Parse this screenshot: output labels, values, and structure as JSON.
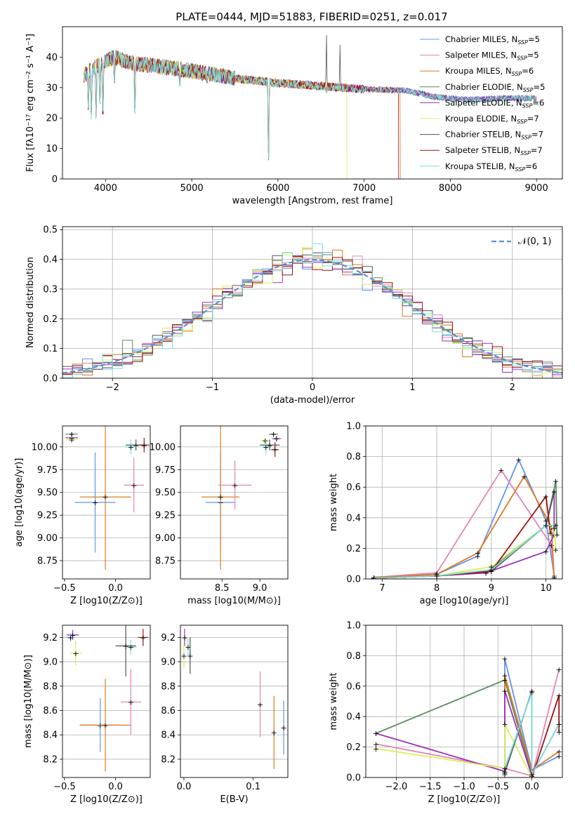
{
  "title": "PLATE=0444, MJD=51883, FIBERID=0251, z=0.017",
  "colors": [
    "#6495ED",
    "#E585B8",
    "#E07B22",
    "#5D8A5E",
    "#9B30B8",
    "#D8F05A",
    "#555555",
    "#A01010",
    "#7DDDDD"
  ],
  "chart_data": [
    {
      "id": "spectrum",
      "type": "line",
      "xlabel": "wavelength [Angstrom, rest frame]",
      "ylabel": "Flux [fλ10⁻¹⁷ erg cm⁻² s⁻¹ A⁻¹]",
      "xlim": [
        3500,
        9300
      ],
      "ylim": [
        0,
        50
      ],
      "xticks": [
        4000,
        5000,
        6000,
        7000,
        8000,
        9000
      ],
      "yticks": [
        0,
        10,
        20,
        30,
        40
      ],
      "legend_position": "top-right",
      "legend": [
        "Chabrier MILES, N_SSP=5",
        "Salpeter MILES, N_SSP=5",
        "Kroupa MILES, N_SSP=6",
        "Chabrier ELODIE, N_SSP=5",
        "Salpeter ELODIE, N_SSP=6",
        "Kroupa ELODIE, N_SSP=7",
        "Chabrier STELIB, N_SSP=7",
        "Salpeter STELIB, N_SSP=7",
        "Kroupa STELIB, N_SSP=6"
      ],
      "continuum": [
        [
          3750,
          34
        ],
        [
          3950,
          38
        ],
        [
          4100,
          40
        ],
        [
          4300,
          38
        ],
        [
          4600,
          37
        ],
        [
          5000,
          35.5
        ],
        [
          5500,
          33
        ],
        [
          6000,
          31.5
        ],
        [
          6500,
          30.5
        ],
        [
          7000,
          29.5
        ],
        [
          7500,
          29
        ],
        [
          7800,
          27
        ],
        [
          8200,
          26
        ],
        [
          8600,
          26.5
        ],
        [
          9000,
          26.5
        ]
      ],
      "series_ranges": [
        [
          3750,
          9000
        ],
        [
          3750,
          9000
        ],
        [
          3750,
          7420
        ],
        [
          3750,
          9000
        ],
        [
          3750,
          8900
        ],
        [
          3750,
          6800
        ],
        [
          3750,
          9000
        ],
        [
          3750,
          7400
        ],
        [
          3750,
          8950
        ]
      ],
      "absorption_lines": [
        [
          3800,
          20
        ],
        [
          3835,
          18
        ],
        [
          3890,
          16
        ],
        [
          3934,
          22
        ],
        [
          3969,
          15
        ],
        [
          4102,
          30
        ],
        [
          4340,
          18
        ],
        [
          4861,
          30
        ],
        [
          5175,
          31
        ],
        [
          5890,
          0
        ],
        [
          6563,
          28
        ]
      ],
      "emission_lines": [
        [
          6563,
          50
        ],
        [
          6720,
          44
        ]
      ]
    },
    {
      "id": "residual_histogram",
      "type": "histogram",
      "xlabel": "(data-model)/error",
      "ylabel": "Normed distribution",
      "xlim": [
        -2.5,
        2.5
      ],
      "ylim": [
        0,
        0.51
      ],
      "xticks": [
        -2,
        -1,
        0,
        1,
        2
      ],
      "yticks": [
        0.0,
        0.1,
        0.2,
        0.3,
        0.4,
        0.5
      ],
      "legend_position": "top-right",
      "reference_curve": "N(0,1)",
      "reference_label": "𝒩(0, 1)",
      "bin_width": 0.1,
      "grid": true
    },
    {
      "id": "age_vs_metallicity",
      "type": "errorbar",
      "xlabel": "Z [log10(Z/Z⊙)]",
      "ylabel": "age  [log10(age/yr)]",
      "xlim": [
        -0.52,
        0.34
      ],
      "ylim": [
        8.55,
        10.23
      ],
      "xticks": [
        -0.5,
        0.0
      ],
      "yticks": [
        8.75,
        9.0,
        9.25,
        9.5,
        9.75,
        10.0
      ],
      "points": [
        {
          "c": 0,
          "x": -0.2,
          "y": 9.39,
          "xe": 0.2,
          "ye": 0.55
        },
        {
          "c": 2,
          "x": -0.1,
          "y": 9.45,
          "xe": 0.25,
          "ye": 0.8
        },
        {
          "c": 1,
          "x": 0.18,
          "y": 9.58,
          "xe": 0.1,
          "ye": 0.3
        },
        {
          "c": 4,
          "x": -0.43,
          "y": 10.1,
          "xe": 0.06,
          "ye": 0.03
        },
        {
          "c": 5,
          "x": -0.43,
          "y": 10.08,
          "xe": 0.06,
          "ye": 0.03
        },
        {
          "c": 3,
          "x": -0.43,
          "y": 10.14,
          "xe": 0.06,
          "ye": 0.02
        },
        {
          "c": 6,
          "x": 0.2,
          "y": 10.02,
          "xe": 0.1,
          "ye": 0.06
        },
        {
          "c": 7,
          "x": 0.28,
          "y": 10.02,
          "xe": 0.05,
          "ye": 0.08
        },
        {
          "c": 8,
          "x": 0.15,
          "y": 10.0,
          "xe": 0.06,
          "ye": 0.08
        }
      ]
    },
    {
      "id": "age_vs_mass",
      "type": "errorbar",
      "xlabel": "mass [log10(M/M⊙)]",
      "ylabel": "",
      "xlim": [
        7.95,
        9.37
      ],
      "ylim": [
        8.55,
        10.23
      ],
      "xticks": [
        8.5,
        9.0
      ],
      "yticks": [
        8.75,
        9.0,
        9.25,
        9.5,
        9.75,
        10.0
      ],
      "points": [
        {
          "c": 0,
          "x": 8.48,
          "y": 9.39,
          "xe": 0.2,
          "ye": 0.55
        },
        {
          "c": 2,
          "x": 8.48,
          "y": 9.45,
          "xe": 0.25,
          "ye": 0.8
        },
        {
          "c": 1,
          "x": 8.67,
          "y": 9.58,
          "xe": 0.22,
          "ye": 0.27
        },
        {
          "c": 4,
          "x": 9.22,
          "y": 10.09,
          "xe": 0.06,
          "ye": 0.03
        },
        {
          "c": 5,
          "x": 9.07,
          "y": 10.07,
          "xe": 0.06,
          "ye": 0.03
        },
        {
          "c": 3,
          "x": 9.18,
          "y": 10.14,
          "xe": 0.06,
          "ye": 0.02
        },
        {
          "c": 6,
          "x": 9.13,
          "y": 10.02,
          "xe": 0.13,
          "ye": 0.06
        },
        {
          "c": 7,
          "x": 9.2,
          "y": 9.97,
          "xe": 0.05,
          "ye": 0.08
        },
        {
          "c": 8,
          "x": 9.08,
          "y": 10.0,
          "xe": 0.05,
          "ye": 0.08
        }
      ]
    },
    {
      "id": "weight_vs_age",
      "type": "line",
      "xlabel": "age  [log10(age/yr)]",
      "ylabel": "mass weight",
      "xlim": [
        6.7,
        10.3
      ],
      "ylim": [
        0,
        1.0
      ],
      "xticks": [
        7,
        8,
        9,
        10
      ],
      "yticks": [
        0.0,
        0.2,
        0.4,
        0.6,
        0.8,
        1.0
      ],
      "grid": true,
      "series": [
        {
          "c": 0,
          "points": [
            [
              6.85,
              0.01
            ],
            [
              8.0,
              0.03
            ],
            [
              8.75,
              0.15
            ],
            [
              9.5,
              0.78
            ],
            [
              10.0,
              0.38
            ],
            [
              10.15,
              0.02
            ]
          ]
        },
        {
          "c": 1,
          "points": [
            [
              6.85,
              0.01
            ],
            [
              8.0,
              0.04
            ],
            [
              9.18,
              0.71
            ],
            [
              10.1,
              0.22
            ],
            [
              10.15,
              0.01
            ]
          ]
        },
        {
          "c": 2,
          "points": [
            [
              6.85,
              0.01
            ],
            [
              8.0,
              0.03
            ],
            [
              8.75,
              0.17
            ],
            [
              9.6,
              0.67
            ],
            [
              10.1,
              0.34
            ],
            [
              10.15,
              0.01
            ]
          ]
        },
        {
          "c": 3,
          "points": [
            [
              6.85,
              0.005
            ],
            [
              8.0,
              0.02
            ],
            [
              8.9,
              0.04
            ],
            [
              10.0,
              0.35
            ],
            [
              10.18,
              0.64
            ],
            [
              10.2,
              0.29
            ]
          ]
        },
        {
          "c": 4,
          "points": [
            [
              6.85,
              0.005
            ],
            [
              8.0,
              0.02
            ],
            [
              8.9,
              0.04
            ],
            [
              10.0,
              0.18
            ],
            [
              10.15,
              0.29
            ],
            [
              10.15,
              0.57
            ]
          ]
        },
        {
          "c": 5,
          "points": [
            [
              6.85,
              0.005
            ],
            [
              8.0,
              0.02
            ],
            [
              9.0,
              0.08
            ],
            [
              10.0,
              0.35
            ],
            [
              10.15,
              0.33
            ],
            [
              10.18,
              0.19
            ]
          ]
        },
        {
          "c": 6,
          "points": [
            [
              6.85,
              0.005
            ],
            [
              8.0,
              0.02
            ],
            [
              9.0,
              0.05
            ],
            [
              10.0,
              0.35
            ],
            [
              10.15,
              0.57
            ]
          ]
        },
        {
          "c": 7,
          "points": [
            [
              6.85,
              0.005
            ],
            [
              8.0,
              0.02
            ],
            [
              9.0,
              0.05
            ],
            [
              10.0,
              0.54
            ],
            [
              10.08,
              0.3
            ]
          ]
        },
        {
          "c": 8,
          "points": [
            [
              6.85,
              0.005
            ],
            [
              8.0,
              0.02
            ],
            [
              9.0,
              0.06
            ],
            [
              10.0,
              0.35
            ],
            [
              10.18,
              0.35
            ]
          ]
        }
      ]
    },
    {
      "id": "mass_vs_metallicity",
      "type": "errorbar",
      "xlabel": "Z [log10(Z/Z⊙)]",
      "ylabel": "mass [log10(M/M⊙)]",
      "xlim": [
        -0.52,
        0.34
      ],
      "ylim": [
        8.05,
        9.3
      ],
      "xticks": [
        -0.5,
        0.0
      ],
      "yticks": [
        8.2,
        8.4,
        8.6,
        8.8,
        9.0,
        9.2
      ],
      "points": [
        {
          "c": 0,
          "x": -0.15,
          "y": 8.48,
          "xe": 0.2,
          "ye": 0.22
        },
        {
          "c": 2,
          "x": -0.1,
          "y": 8.48,
          "xe": 0.25,
          "ye": 0.38
        },
        {
          "c": 1,
          "x": 0.15,
          "y": 8.67,
          "xe": 0.1,
          "ye": 0.27
        },
        {
          "c": 4,
          "x": -0.42,
          "y": 9.22,
          "xe": 0.06,
          "ye": 0.04
        },
        {
          "c": 0,
          "x": -0.44,
          "y": 9.2,
          "xe": 0.04,
          "ye": 0.03
        },
        {
          "c": 5,
          "x": -0.39,
          "y": 9.07,
          "xe": 0.06,
          "ye": 0.1
        },
        {
          "c": 6,
          "x": 0.1,
          "y": 9.13,
          "xe": 0.1,
          "ye": 0.25
        },
        {
          "c": 7,
          "x": 0.27,
          "y": 9.2,
          "xe": 0.05,
          "ye": 0.07
        },
        {
          "c": 8,
          "x": 0.15,
          "y": 9.12,
          "xe": 0.05,
          "ye": 0.06
        }
      ]
    },
    {
      "id": "mass_vs_ebv",
      "type": "errorbar",
      "xlabel": "E(B-V)",
      "ylabel": "",
      "xlim": [
        -0.005,
        0.15
      ],
      "ylim": [
        8.05,
        9.3
      ],
      "xticks": [
        0.0,
        0.1
      ],
      "yticks": [
        8.2,
        8.4,
        8.6,
        8.8,
        9.0,
        9.2
      ],
      "points": [
        {
          "c": 4,
          "x": 0.001,
          "y": 9.2,
          "xe": 0.0,
          "ye": 0.07
        },
        {
          "c": 5,
          "x": 0.0,
          "y": 9.05,
          "xe": 0.0,
          "ye": 0.1
        },
        {
          "c": 6,
          "x": 0.009,
          "y": 9.05,
          "xe": 0.0,
          "ye": 0.15
        },
        {
          "c": 8,
          "x": 0.006,
          "y": 9.12,
          "xe": 0.0,
          "ye": 0.07
        },
        {
          "c": 1,
          "x": 0.11,
          "y": 8.65,
          "xe": 0.0,
          "ye": 0.27
        },
        {
          "c": 2,
          "x": 0.13,
          "y": 8.42,
          "xe": 0.0,
          "ye": 0.3
        },
        {
          "c": 0,
          "x": 0.144,
          "y": 8.46,
          "xe": 0.0,
          "ye": 0.22
        }
      ]
    },
    {
      "id": "weight_vs_metallicity",
      "type": "line",
      "xlabel": "Z [log10(Z/Z⊙)]",
      "ylabel": "mass weight",
      "xlim": [
        -2.45,
        0.45
      ],
      "ylim": [
        0,
        1.0
      ],
      "xticks": [
        -2.0,
        -1.5,
        -1.0,
        -0.5,
        0.0
      ],
      "yticks": [
        0.0,
        0.2,
        0.4,
        0.6,
        0.8,
        1.0
      ],
      "grid": true,
      "series": [
        {
          "c": 0,
          "points": [
            [
              -0.4,
              0.02
            ],
            [
              -0.4,
              0.78
            ],
            [
              0.0,
              0.05
            ],
            [
              0.4,
              0.14
            ]
          ]
        },
        {
          "c": 1,
          "points": [
            [
              -2.3,
              0.22
            ],
            [
              -0.4,
              0.06
            ],
            [
              0.0,
              0.01
            ],
            [
              0.4,
              0.71
            ]
          ]
        },
        {
          "c": 2,
          "points": [
            [
              -0.4,
              0.03
            ],
            [
              -0.4,
              0.67
            ],
            [
              0.0,
              0.05
            ],
            [
              0.4,
              0.17
            ]
          ]
        },
        {
          "c": 3,
          "points": [
            [
              -2.3,
              0.29
            ],
            [
              -0.4,
              0.64
            ],
            [
              0.0,
              0.02
            ],
            [
              0.4,
              0.35
            ]
          ]
        },
        {
          "c": 4,
          "points": [
            [
              -2.3,
              0.29
            ],
            [
              -0.4,
              0.04
            ],
            [
              -0.4,
              0.57
            ],
            [
              0.0,
              0.01
            ]
          ]
        },
        {
          "c": 5,
          "points": [
            [
              -2.3,
              0.19
            ],
            [
              -0.4,
              0.06
            ],
            [
              -0.4,
              0.35
            ],
            [
              0.0,
              0.0
            ]
          ]
        },
        {
          "c": 6,
          "points": [
            [
              -0.4,
              0.03
            ],
            [
              0.0,
              0.57
            ],
            [
              0.0,
              0.0
            ]
          ]
        },
        {
          "c": 7,
          "points": [
            [
              0.0,
              0.0
            ],
            [
              0.4,
              0.54
            ],
            [
              0.4,
              0.3
            ]
          ]
        },
        {
          "c": 8,
          "points": [
            [
              -0.4,
              0.06
            ],
            [
              0.0,
              0.56
            ],
            [
              0.0,
              0.02
            ],
            [
              0.4,
              0.35
            ]
          ]
        }
      ]
    }
  ]
}
